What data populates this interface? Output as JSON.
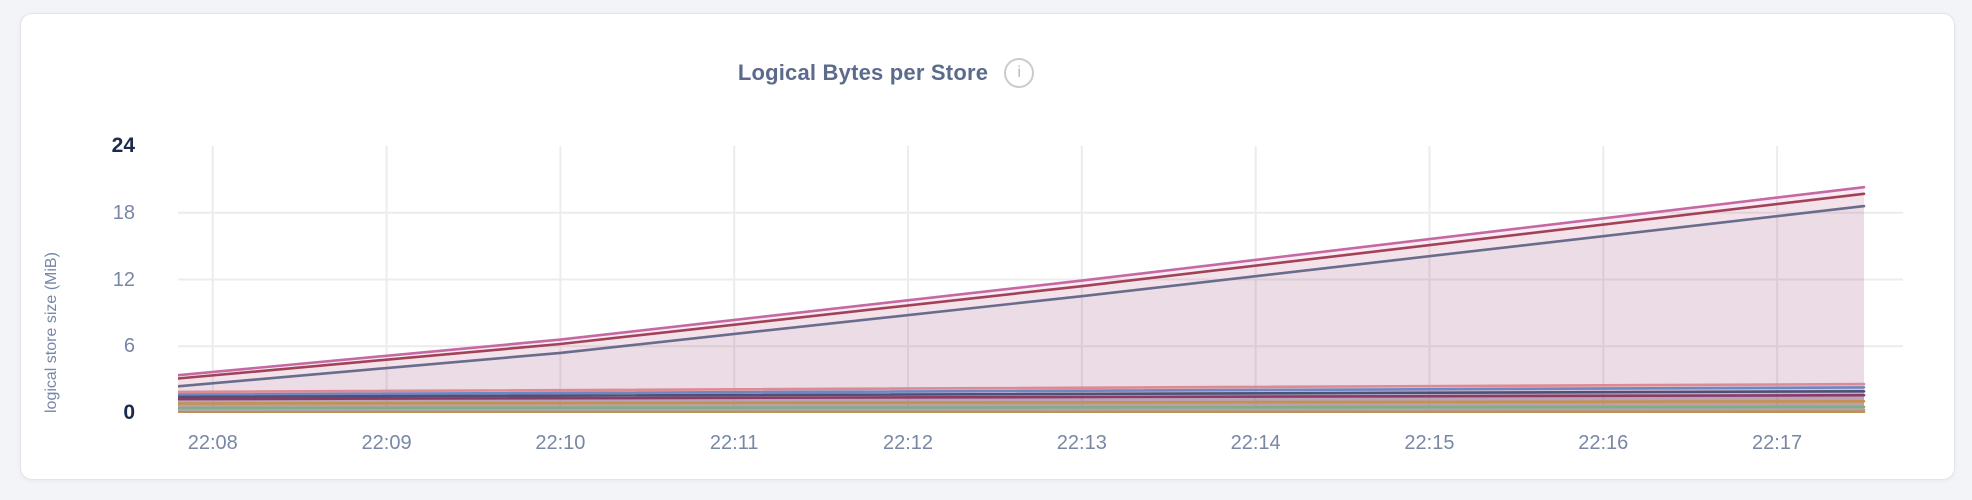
{
  "card": {
    "info_icon": "i"
  },
  "chart_data": {
    "type": "area",
    "title": "Logical Bytes per Store",
    "subtitle": "",
    "xlabel": "",
    "ylabel": "logical store size (MiB)",
    "ylim": [
      0,
      24
    ],
    "grid": true,
    "legend": false,
    "x_unit": "time (HH:MM)",
    "x_domain": {
      "min": 7.8,
      "max": 17.5,
      "note": "minutes after 22:00"
    },
    "y_ticks": [
      {
        "v": 0,
        "label": "0",
        "bold": true
      },
      {
        "v": 6,
        "label": "6",
        "bold": false
      },
      {
        "v": 12,
        "label": "12",
        "bold": false
      },
      {
        "v": 18,
        "label": "18",
        "bold": false
      },
      {
        "v": 24,
        "label": "24",
        "bold": true
      }
    ],
    "x_ticks": [
      {
        "minute": 8,
        "label": "22:08"
      },
      {
        "minute": 9,
        "label": "22:09"
      },
      {
        "minute": 10,
        "label": "22:10"
      },
      {
        "minute": 11,
        "label": "22:11"
      },
      {
        "minute": 12,
        "label": "22:12"
      },
      {
        "minute": 13,
        "label": "22:13"
      },
      {
        "minute": 14,
        "label": "22:14"
      },
      {
        "minute": 15,
        "label": "22:15"
      },
      {
        "minute": 16,
        "label": "22:16"
      },
      {
        "minute": 17,
        "label": "22:17"
      }
    ],
    "series": [
      {
        "id": "store-rising-1",
        "color": "#c668a3",
        "fill_opacity": 0.13,
        "points": [
          [
            7.8,
            3.4
          ],
          [
            10,
            6.6
          ],
          [
            13,
            11.9
          ],
          [
            17.5,
            20.3
          ]
        ]
      },
      {
        "id": "store-rising-2",
        "color": "#a34257",
        "fill_opacity": 0.05,
        "points": [
          [
            7.8,
            3.1
          ],
          [
            10,
            6.2
          ],
          [
            13,
            11.4
          ],
          [
            17.5,
            19.7
          ]
        ]
      },
      {
        "id": "store-rising-3",
        "color": "#696c8c",
        "fill_opacity": 0.05,
        "points": [
          [
            7.8,
            2.4
          ],
          [
            10,
            5.4
          ],
          [
            13,
            10.5
          ],
          [
            17.5,
            18.6
          ]
        ]
      },
      {
        "id": "store-flat-1",
        "color": "#dd8a95",
        "fill_opacity": 0.14,
        "points": [
          [
            7.8,
            1.9
          ],
          [
            17.5,
            2.6
          ]
        ]
      },
      {
        "id": "store-flat-2",
        "color": "#6f86c0",
        "fill_opacity": 0.14,
        "points": [
          [
            7.8,
            1.65
          ],
          [
            17.5,
            2.3
          ]
        ]
      },
      {
        "id": "store-flat-3",
        "color": "#4d5178",
        "fill_opacity": 0.14,
        "points": [
          [
            7.8,
            1.45
          ],
          [
            17.5,
            1.95
          ]
        ]
      },
      {
        "id": "store-flat-4",
        "color": "#8a3c66",
        "fill_opacity": 0.14,
        "points": [
          [
            7.8,
            1.25
          ],
          [
            17.5,
            1.6
          ]
        ]
      },
      {
        "id": "store-flat-5",
        "color": "#c3924f",
        "fill_opacity": 0.14,
        "points": [
          [
            7.8,
            0.85
          ],
          [
            17.5,
            1.05
          ]
        ]
      },
      {
        "id": "store-flat-6",
        "color": "#7fae86",
        "fill_opacity": 0.14,
        "points": [
          [
            7.8,
            0.45
          ],
          [
            17.5,
            0.55
          ]
        ]
      },
      {
        "id": "store-flat-7",
        "color": "#b5a3b1",
        "fill_opacity": 0.14,
        "points": [
          [
            7.8,
            0.22
          ],
          [
            17.5,
            0.3
          ]
        ]
      },
      {
        "id": "store-flat-8",
        "color": "#bd9255",
        "fill_opacity": 0.14,
        "points": [
          [
            7.8,
            0.06
          ],
          [
            17.5,
            0.12
          ]
        ]
      }
    ]
  }
}
